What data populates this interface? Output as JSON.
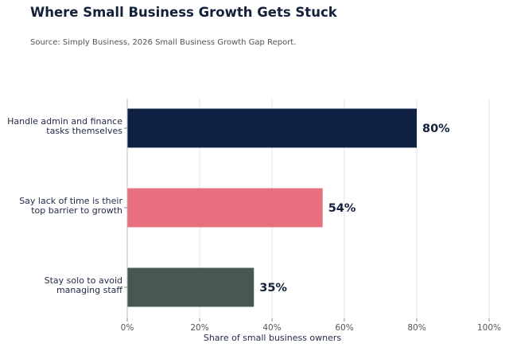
{
  "header": {
    "title": "Where Small Business Growth Gets Stuck",
    "subtitle": "Source: Simply Business, 2026 Small Business Growth Gap Report."
  },
  "chart_data": {
    "type": "bar",
    "orientation": "horizontal",
    "categories": [
      [
        "Handle admin and finance",
        "tasks themselves"
      ],
      [
        "Say lack of time is their",
        "top barrier to growth"
      ],
      [
        "Stay solo to avoid",
        "managing staff"
      ]
    ],
    "values": [
      80,
      54,
      35
    ],
    "value_labels": [
      "80%",
      "54%",
      "35%"
    ],
    "colors": [
      "#0f2143",
      "#e8707e",
      "#465851"
    ],
    "xlabel": "Share of small business owners",
    "xlim": [
      0,
      100
    ],
    "xticks": [
      0,
      20,
      40,
      60,
      80,
      100
    ],
    "xtick_labels": [
      "0%",
      "20%",
      "40%",
      "60%",
      "80%",
      "100%"
    ],
    "grid": "vertical"
  }
}
